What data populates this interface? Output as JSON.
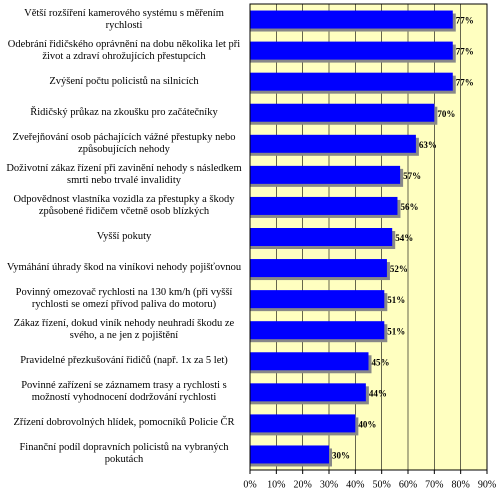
{
  "chart_data": {
    "type": "bar",
    "orientation": "horizontal",
    "categories": [
      "Větší rozšíření kamerového systému s měřením rychlosti",
      "Odebrání řidičského oprávnění na dobu několika let při život a zdraví ohrožujících přestupcích",
      "Zvýšení počtu policistů na silnicích",
      "Řidičský průkaz na zkoušku pro začátečníky",
      "Zveřejňování osob páchajících vážné přestupky nebo způsobujících nehody",
      "Doživotní zákaz řízení při zavinění nehody s následkem smrti nebo trvalé invalidity",
      "Odpovědnost vlastníka vozidla za přestupky a škody způsobené řidičem včetně osob blízkých",
      "Vyšší pokuty",
      "Vymáhání úhrady škod na viníkovi nehody pojišťovnou",
      "Povinný omezovač rychlosti na 130 km/h (při vyšší rychlosti se omezí přívod paliva do motoru)",
      "Zákaz řízení, dokud viník nehody neuhradí škodu ze svého, a ne jen z pojištění",
      "Pravidelné přezkušování řidičů (např. 1x za 5 let)",
      "Povinné zařízení se záznamem trasy a rychlosti s možností vyhodnocení dodržování rychlosti",
      "Zřízení dobrovolných hlídek, pomocníků Policie ČR",
      "Finanční podíl dopravních policistů na vybraných pokutách"
    ],
    "values": [
      77,
      77,
      77,
      70,
      63,
      57,
      56,
      54,
      52,
      51,
      51,
      45,
      44,
      40,
      30
    ],
    "value_labels": [
      "77%",
      "77%",
      "77%",
      "70%",
      "63%",
      "57%",
      "56%",
      "54%",
      "52%",
      "51%",
      "51%",
      "45%",
      "44%",
      "40%",
      "30%"
    ],
    "color": "#0000ff",
    "plot_background": "#ffffc0",
    "xlim": [
      0,
      90
    ],
    "xticks": [
      {
        "value": 0,
        "label": "0%"
      },
      {
        "value": 10,
        "label": "10%"
      },
      {
        "value": 20,
        "label": "20%"
      },
      {
        "value": 30,
        "label": "30%"
      },
      {
        "value": 40,
        "label": "40%"
      },
      {
        "value": 50,
        "label": "50%"
      },
      {
        "value": 60,
        "label": "60%"
      },
      {
        "value": 70,
        "label": "70%"
      },
      {
        "value": 80,
        "label": "80%"
      },
      {
        "value": 90,
        "label": "90%"
      }
    ],
    "grid": true
  }
}
